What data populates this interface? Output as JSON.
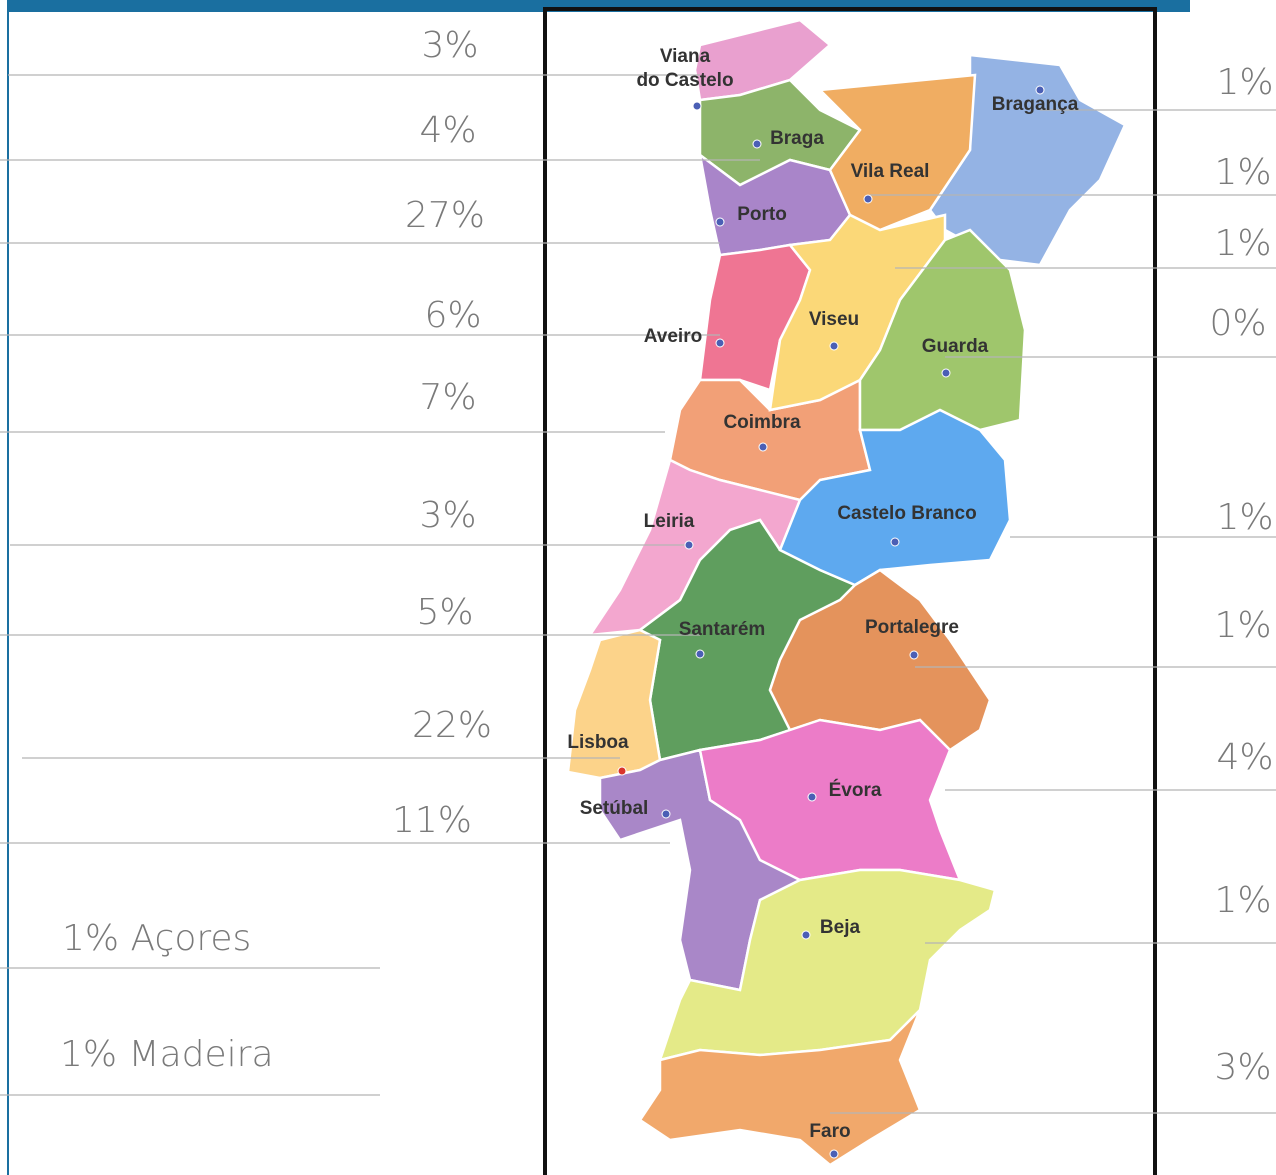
{
  "districts": [
    {
      "name": [
        "Viana",
        "do Castelo"
      ],
      "share": "3%",
      "color": "#e9a0cf"
    },
    {
      "name": [
        "Braga"
      ],
      "share": "4%",
      "color": "#8db46a"
    },
    {
      "name": [
        "Porto"
      ],
      "share": "27%",
      "color": "#a985c9"
    },
    {
      "name": [
        "Aveiro"
      ],
      "share": "6%",
      "color": "#ef7593"
    },
    {
      "name": [
        "Coimbra"
      ],
      "share": "7%",
      "color": "#f2a077"
    },
    {
      "name": [
        "Leiria"
      ],
      "share": "3%",
      "color": "#f3a7cf"
    },
    {
      "name": [
        "Santarém"
      ],
      "share": "5%",
      "color": "#5f9e5e"
    },
    {
      "name": [
        "Lisboa"
      ],
      "share": "22%",
      "color": "#fcd38a"
    },
    {
      "name": [
        "Setúbal"
      ],
      "share": "11%",
      "color": "#a987c8"
    },
    {
      "name": [
        "Bragança"
      ],
      "share": "1%",
      "color": "#94b3e4"
    },
    {
      "name": [
        "Vila Real"
      ],
      "share": "1%",
      "color": "#f0ad62"
    },
    {
      "name": [
        "Viseu"
      ],
      "share": "1%",
      "color": "#fbd878"
    },
    {
      "name": [
        "Guarda"
      ],
      "share": "0%",
      "color": "#9fc66c"
    },
    {
      "name": [
        "Castelo Branco"
      ],
      "share": "1%",
      "color": "#5ea9ef"
    },
    {
      "name": [
        "Portalegre"
      ],
      "share": "1%",
      "color": "#e4935c"
    },
    {
      "name": [
        "Évora"
      ],
      "share": "4%",
      "color": "#ec7cc8"
    },
    {
      "name": [
        "Beja"
      ],
      "share": "1%",
      "color": "#e4ea88"
    },
    {
      "name": [
        "Faro"
      ],
      "share": "3%",
      "color": "#f1a86b"
    }
  ],
  "islands": [
    "1% Açores",
    "1% Madeira"
  ]
}
